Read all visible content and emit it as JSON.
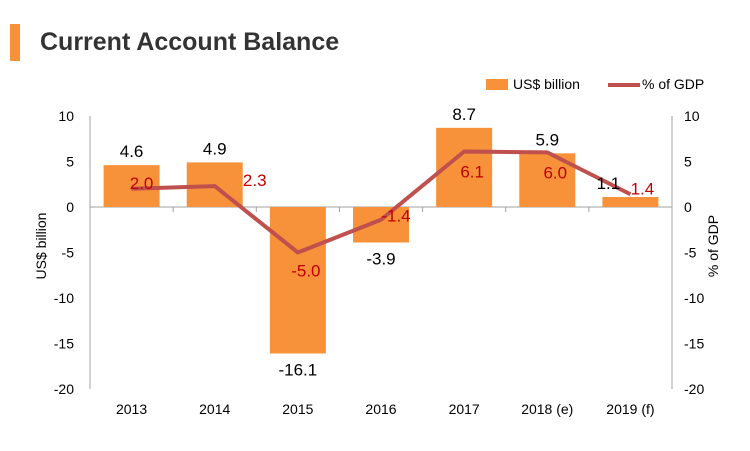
{
  "colors": {
    "accent": "#f7923a",
    "bar": "#f7923a",
    "line": "#c0504d",
    "line_label": "#c00000",
    "bar_label": "#000000",
    "title": "#333333",
    "axis": "#a0a0a0"
  },
  "chart_data": {
    "type": "bar",
    "title": "Current Account Balance",
    "categories": [
      "2013",
      "2014",
      "2015",
      "2016",
      "2017",
      "2018 (e)",
      "2019 (f)"
    ],
    "series": [
      {
        "name": "US$ billion",
        "type": "bar",
        "axis": "left",
        "values": [
          4.6,
          4.9,
          -16.1,
          -3.9,
          8.7,
          5.9,
          1.1
        ],
        "labels": [
          "4.6",
          "4.9",
          "-16.1",
          "-3.9",
          "8.7",
          "5.9",
          "1.1"
        ]
      },
      {
        "name": "% of GDP",
        "type": "line",
        "axis": "right",
        "values": [
          2.0,
          2.3,
          -5.0,
          -1.4,
          6.1,
          6.0,
          1.4
        ],
        "labels": [
          "2.0",
          "2.3",
          "-5.0",
          "-1.4",
          "6.1",
          "6.0",
          "1.4"
        ]
      }
    ],
    "ylabel": "US$ billion",
    "y2label": "% of GDP",
    "ylim": [
      -20,
      10
    ],
    "y2lim": [
      -20,
      10
    ],
    "yticks": [
      "10",
      "5",
      "0",
      "-5",
      "-10",
      "-15",
      "-20"
    ],
    "y2ticks": [
      "10",
      "5",
      "0",
      "-5",
      "-10",
      "-15",
      "-20"
    ],
    "grid": false,
    "legend": "top-right"
  }
}
